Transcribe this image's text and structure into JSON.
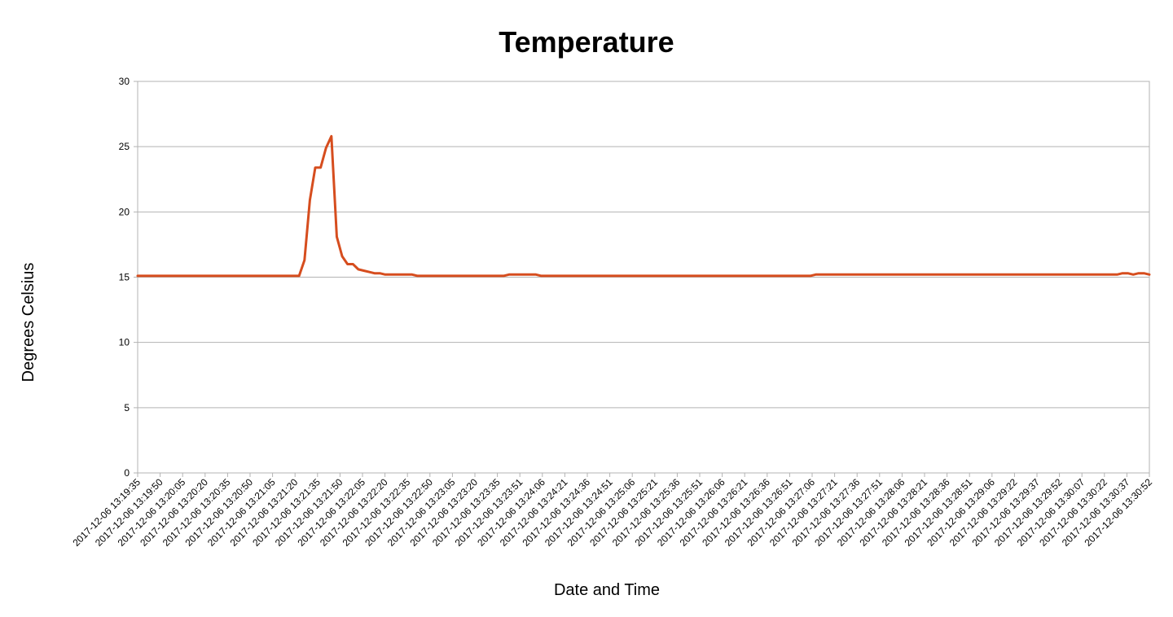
{
  "chart_data": {
    "type": "line",
    "title": "Temperature",
    "xlabel": "Date and Time",
    "ylabel": "Degrees Celsius",
    "ylim": [
      0,
      30
    ],
    "yticks": [
      0,
      5,
      10,
      15,
      20,
      25,
      30
    ],
    "grid": true,
    "legend": "none",
    "series_color": "#d64d1e",
    "x_tick_labels": [
      "2017-12-06 13:19:35",
      "2017-12-06 13:19:50",
      "2017-12-06 13:20:05",
      "2017-12-06 13:20:20",
      "2017-12-06 13:20:35",
      "2017-12-06 13:20:50",
      "2017-12-06 13:21:05",
      "2017-12-06 13:21:20",
      "2017-12-06 13:21:35",
      "2017-12-06 13:21:50",
      "2017-12-06 13:22:05",
      "2017-12-06 13:22:20",
      "2017-12-06 13:22:35",
      "2017-12-06 13:22:50",
      "2017-12-06 13:23:05",
      "2017-12-06 13:23:20",
      "2017-12-06 13:23:35",
      "2017-12-06 13:23:51",
      "2017-12-06 13:24:06",
      "2017-12-06 13:24:21",
      "2017-12-06 13:24:36",
      "2017-12-06 13:24:51",
      "2017-12-06 13:25:06",
      "2017-12-06 13:25:21",
      "2017-12-06 13:25:36",
      "2017-12-06 13:25:51",
      "2017-12-06 13:26:06",
      "2017-12-06 13:26:21",
      "2017-12-06 13:26:36",
      "2017-12-06 13:26:51",
      "2017-12-06 13:27:06",
      "2017-12-06 13:27:21",
      "2017-12-06 13:27:36",
      "2017-12-06 13:27:51",
      "2017-12-06 13:28:06",
      "2017-12-06 13:28:21",
      "2017-12-06 13:28:36",
      "2017-12-06 13:28:51",
      "2017-12-06 13:29:06",
      "2017-12-06 13:29:22",
      "2017-12-06 13:29:37",
      "2017-12-06 13:29:52",
      "2017-12-06 13:30:07",
      "2017-12-06 13:30:22",
      "2017-12-06 13:30:37",
      "2017-12-06 13:30:52"
    ],
    "values": [
      15.1,
      15.1,
      15.1,
      15.1,
      15.1,
      15.1,
      15.1,
      15.1,
      15.1,
      15.1,
      15.1,
      15.1,
      15.1,
      15.1,
      15.1,
      15.1,
      15.1,
      15.1,
      15.1,
      15.1,
      15.1,
      15.1,
      15.1,
      15.1,
      15.1,
      15.1,
      15.1,
      15.1,
      15.1,
      15.1,
      15.1,
      16.3,
      20.9,
      23.4,
      23.4,
      24.9,
      25.8,
      18.1,
      16.6,
      16.0,
      16.0,
      15.6,
      15.5,
      15.4,
      15.3,
      15.3,
      15.2,
      15.2,
      15.2,
      15.2,
      15.2,
      15.2,
      15.1,
      15.1,
      15.1,
      15.1,
      15.1,
      15.1,
      15.1,
      15.1,
      15.1,
      15.1,
      15.1,
      15.1,
      15.1,
      15.1,
      15.1,
      15.1,
      15.1,
      15.2,
      15.2,
      15.2,
      15.2,
      15.2,
      15.2,
      15.1,
      15.1,
      15.1,
      15.1,
      15.1,
      15.1,
      15.1,
      15.1,
      15.1,
      15.1,
      15.1,
      15.1,
      15.1,
      15.1,
      15.1,
      15.1,
      15.1,
      15.1,
      15.1,
      15.1,
      15.1,
      15.1,
      15.1,
      15.1,
      15.1,
      15.1,
      15.1,
      15.1,
      15.1,
      15.1,
      15.1,
      15.1,
      15.1,
      15.1,
      15.1,
      15.1,
      15.1,
      15.1,
      15.1,
      15.1,
      15.1,
      15.1,
      15.1,
      15.1,
      15.1,
      15.1,
      15.1,
      15.1,
      15.1,
      15.1,
      15.1,
      15.2,
      15.2,
      15.2,
      15.2,
      15.2,
      15.2,
      15.2,
      15.2,
      15.2,
      15.2,
      15.2,
      15.2,
      15.2,
      15.2,
      15.2,
      15.2,
      15.2,
      15.2,
      15.2,
      15.2,
      15.2,
      15.2,
      15.2,
      15.2,
      15.2,
      15.2,
      15.2,
      15.2,
      15.2,
      15.2,
      15.2,
      15.2,
      15.2,
      15.2,
      15.2,
      15.2,
      15.2,
      15.2,
      15.2,
      15.2,
      15.2,
      15.2,
      15.2,
      15.2,
      15.2,
      15.2,
      15.2,
      15.2,
      15.2,
      15.2,
      15.2,
      15.2,
      15.2,
      15.2,
      15.2,
      15.2,
      15.2,
      15.3,
      15.3,
      15.2,
      15.3,
      15.3,
      15.2
    ]
  }
}
